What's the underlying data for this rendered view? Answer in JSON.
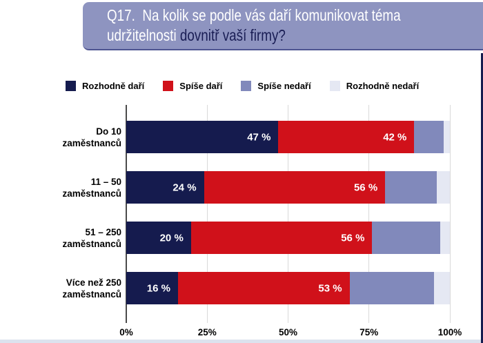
{
  "header": {
    "line1": "Q17.  Na kolik se podle vás daří komunikovat téma",
    "line2_white": "udržitelnosti ",
    "line2_accent": "dovnitř vaší firmy?",
    "bg_color": "#8e94c0",
    "text_color": "#ffffff",
    "accent_color": "#1a1e55"
  },
  "legend": {
    "items": [
      {
        "label": "Rozhodně daří",
        "color": "#151b4e"
      },
      {
        "label": "Spíše daří",
        "color": "#d0111a"
      },
      {
        "label": "Spíše nedaří",
        "color": "#8189bb"
      },
      {
        "label": "Rozhodně nedaří",
        "color": "#e5e8f3"
      }
    ]
  },
  "chart_data": {
    "type": "bar",
    "orientation": "horizontal",
    "stacked": true,
    "unit": "%",
    "categories": [
      {
        "line1": "Do 10",
        "line2": "zaměstnanců"
      },
      {
        "line1": "11 – 50",
        "line2": "zaměstnanců"
      },
      {
        "line1": "51 – 250",
        "line2": "zaměstnanců"
      },
      {
        "line1": "Více než 250",
        "line2": "zaměstnanců"
      }
    ],
    "series": [
      {
        "name": "Rozhodně daří",
        "color": "#151b4e",
        "values": [
          47,
          24,
          20,
          16
        ],
        "value_labels": [
          "47 %",
          "24 %",
          "20 %",
          "16 %"
        ]
      },
      {
        "name": "Spíše daří",
        "color": "#d0111a",
        "values": [
          42,
          56,
          56,
          53
        ],
        "value_labels": [
          "42 %",
          "56 %",
          "56 %",
          "53 %"
        ]
      },
      {
        "name": "Spíše nedaří",
        "color": "#8189bb",
        "values": [
          9,
          16,
          21,
          26
        ],
        "value_labels": null
      },
      {
        "name": "Rozhodně nedaří",
        "color": "#e5e8f3",
        "values": [
          2,
          4,
          3,
          5
        ],
        "value_labels": null
      }
    ],
    "x_ticks": [
      "0%",
      "25%",
      "50%",
      "75%",
      "100%"
    ],
    "xlim": [
      0,
      100
    ],
    "grid_color": "#d9d9d9",
    "axis_color": "#4a4a4a"
  },
  "frame": {
    "right_edge_color": "#151b4e",
    "bottom_strip_color": "#dce2ee"
  }
}
